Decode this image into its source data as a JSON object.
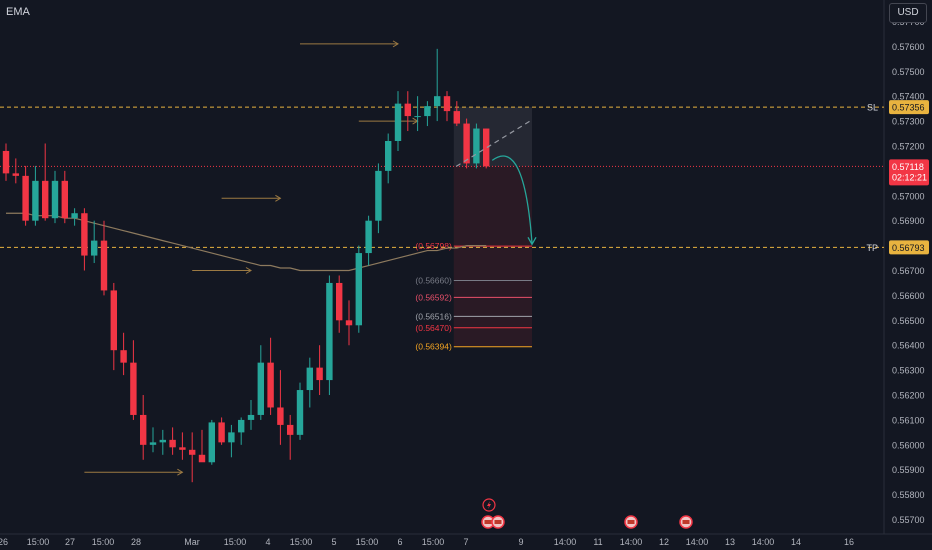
{
  "indicator_label": "EMA",
  "currency_label": "USD",
  "sl_label": "SL",
  "tp_label": "TP",
  "colors": {
    "background": "#131722",
    "bull": "#26a69a",
    "bear": "#f23645",
    "ema": "#8d7a5e",
    "level_line": "#e8b33f",
    "current_price": "#f23645",
    "grid_text": "#b2b5be"
  },
  "price_axis": {
    "min": 0.5565,
    "max": 0.5775,
    "ticks": [
      "0.57700",
      "0.57600",
      "0.57500",
      "0.57400",
      "0.57300",
      "0.57200",
      "0.57100",
      "0.57000",
      "0.56900",
      "0.56800",
      "0.56700",
      "0.56600",
      "0.56500",
      "0.56400",
      "0.56300",
      "0.56200",
      "0.56100",
      "0.56000",
      "0.55900",
      "0.55800",
      "0.55700"
    ],
    "current_price": "0.57118",
    "countdown": "02:12:21"
  },
  "time_axis_labels": [
    "26",
    "15:00",
    "27",
    "15:00",
    "28",
    "Mar",
    "15:00",
    "4",
    "15:00",
    "5",
    "15:00",
    "6",
    "15:00",
    "7",
    "9",
    "14:00",
    "11",
    "14:00",
    "12",
    "14:00",
    "13",
    "14:00",
    "14",
    "16"
  ],
  "chart_data": {
    "type": "candlestick",
    "ema_series_name": "EMA",
    "candles": [
      {
        "o": 0.5718,
        "h": 0.5721,
        "l": 0.5706,
        "c": 0.5709
      },
      {
        "o": 0.5709,
        "h": 0.5715,
        "l": 0.5705,
        "c": 0.5708
      },
      {
        "o": 0.5708,
        "h": 0.5712,
        "l": 0.5688,
        "c": 0.569
      },
      {
        "o": 0.569,
        "h": 0.5712,
        "l": 0.5688,
        "c": 0.5706
      },
      {
        "o": 0.5706,
        "h": 0.5721,
        "l": 0.569,
        "c": 0.5691
      },
      {
        "o": 0.5691,
        "h": 0.571,
        "l": 0.5689,
        "c": 0.5706
      },
      {
        "o": 0.5706,
        "h": 0.571,
        "l": 0.5689,
        "c": 0.5691
      },
      {
        "o": 0.5691,
        "h": 0.5695,
        "l": 0.5688,
        "c": 0.5693
      },
      {
        "o": 0.5693,
        "h": 0.5695,
        "l": 0.567,
        "c": 0.5676
      },
      {
        "o": 0.5676,
        "h": 0.569,
        "l": 0.5673,
        "c": 0.5682
      },
      {
        "o": 0.5682,
        "h": 0.569,
        "l": 0.566,
        "c": 0.5662
      },
      {
        "o": 0.5662,
        "h": 0.5665,
        "l": 0.563,
        "c": 0.5638
      },
      {
        "o": 0.5638,
        "h": 0.5645,
        "l": 0.5628,
        "c": 0.5633
      },
      {
        "o": 0.5633,
        "h": 0.5642,
        "l": 0.561,
        "c": 0.5612
      },
      {
        "o": 0.5612,
        "h": 0.562,
        "l": 0.5594,
        "c": 0.56
      },
      {
        "o": 0.56,
        "h": 0.5607,
        "l": 0.5597,
        "c": 0.5601
      },
      {
        "o": 0.5601,
        "h": 0.5606,
        "l": 0.5596,
        "c": 0.5602
      },
      {
        "o": 0.5602,
        "h": 0.5607,
        "l": 0.5596,
        "c": 0.5599
      },
      {
        "o": 0.5599,
        "h": 0.5605,
        "l": 0.5594,
        "c": 0.5598
      },
      {
        "o": 0.5598,
        "h": 0.5605,
        "l": 0.5585,
        "c": 0.5596
      },
      {
        "o": 0.5596,
        "h": 0.5606,
        "l": 0.5594,
        "c": 0.5593
      },
      {
        "o": 0.5593,
        "h": 0.561,
        "l": 0.5592,
        "c": 0.5609
      },
      {
        "o": 0.5609,
        "h": 0.5611,
        "l": 0.56,
        "c": 0.5601
      },
      {
        "o": 0.5601,
        "h": 0.5608,
        "l": 0.5595,
        "c": 0.5605
      },
      {
        "o": 0.5605,
        "h": 0.5611,
        "l": 0.56,
        "c": 0.561
      },
      {
        "o": 0.561,
        "h": 0.5618,
        "l": 0.5606,
        "c": 0.5612
      },
      {
        "o": 0.5612,
        "h": 0.564,
        "l": 0.561,
        "c": 0.5633
      },
      {
        "o": 0.5633,
        "h": 0.5643,
        "l": 0.5612,
        "c": 0.5615
      },
      {
        "o": 0.5615,
        "h": 0.563,
        "l": 0.56,
        "c": 0.5608
      },
      {
        "o": 0.5608,
        "h": 0.5612,
        "l": 0.5594,
        "c": 0.5604
      },
      {
        "o": 0.5604,
        "h": 0.5625,
        "l": 0.5602,
        "c": 0.5622
      },
      {
        "o": 0.5622,
        "h": 0.5635,
        "l": 0.5615,
        "c": 0.5631
      },
      {
        "o": 0.5631,
        "h": 0.564,
        "l": 0.562,
        "c": 0.5626
      },
      {
        "o": 0.5626,
        "h": 0.5668,
        "l": 0.562,
        "c": 0.5665
      },
      {
        "o": 0.5665,
        "h": 0.5668,
        "l": 0.5645,
        "c": 0.565
      },
      {
        "o": 0.565,
        "h": 0.5658,
        "l": 0.564,
        "c": 0.5648
      },
      {
        "o": 0.5648,
        "h": 0.568,
        "l": 0.5645,
        "c": 0.5677
      },
      {
        "o": 0.5677,
        "h": 0.5692,
        "l": 0.5672,
        "c": 0.569
      },
      {
        "o": 0.569,
        "h": 0.5713,
        "l": 0.5685,
        "c": 0.571
      },
      {
        "o": 0.571,
        "h": 0.5725,
        "l": 0.5705,
        "c": 0.5722
      },
      {
        "o": 0.5722,
        "h": 0.5742,
        "l": 0.5718,
        "c": 0.5737
      },
      {
        "o": 0.5737,
        "h": 0.5742,
        "l": 0.5726,
        "c": 0.5732
      },
      {
        "o": 0.5732,
        "h": 0.574,
        "l": 0.5726,
        "c": 0.5732
      },
      {
        "o": 0.5732,
        "h": 0.5738,
        "l": 0.5728,
        "c": 0.5736
      },
      {
        "o": 0.5736,
        "h": 0.5759,
        "l": 0.573,
        "c": 0.574
      },
      {
        "o": 0.574,
        "h": 0.5742,
        "l": 0.573,
        "c": 0.5734
      },
      {
        "o": 0.5734,
        "h": 0.5738,
        "l": 0.5728,
        "c": 0.5729
      },
      {
        "o": 0.5729,
        "h": 0.5731,
        "l": 0.5711,
        "c": 0.5713
      },
      {
        "o": 0.5713,
        "h": 0.5729,
        "l": 0.5711,
        "c": 0.5727
      },
      {
        "o": 0.5727,
        "h": 0.5727,
        "l": 0.5711,
        "c": 0.57118
      }
    ],
    "ema_values": [
      0.5693,
      0.5693,
      0.5693,
      0.5692,
      0.5692,
      0.5692,
      0.5691,
      0.5691,
      0.569,
      0.5689,
      0.5688,
      0.5687,
      0.5686,
      0.5685,
      0.5684,
      0.5683,
      0.5682,
      0.5681,
      0.568,
      0.5679,
      0.5678,
      0.5677,
      0.5676,
      0.5675,
      0.5674,
      0.5673,
      0.5672,
      0.5672,
      0.5671,
      0.5671,
      0.567,
      0.567,
      0.567,
      0.567,
      0.567,
      0.567,
      0.5671,
      0.5672,
      0.5673,
      0.5674,
      0.5675,
      0.5676,
      0.5677,
      0.5678,
      0.5678,
      0.5679,
      0.5679,
      0.568,
      0.568,
      0.568
    ],
    "levels": [
      {
        "name": "SL",
        "value": "0.57356",
        "color": "#e8b33f"
      },
      {
        "name": "TP",
        "value": "0.56793",
        "color": "#e8b33f"
      }
    ],
    "fib_levels": [
      {
        "label": "(0.56798)",
        "value": 0.56798,
        "color": "#f23645"
      },
      {
        "label": "(0.56660)",
        "value": 0.5666,
        "color": "#787b86"
      },
      {
        "label": "(0.56592)",
        "value": 0.56592,
        "color": "#e8506a"
      },
      {
        "label": "(0.56516)",
        "value": 0.56516,
        "color": "#a0a3ab"
      },
      {
        "label": "(0.56470)",
        "value": 0.5647,
        "color": "#f23645"
      },
      {
        "label": "(0.56394)",
        "value": 0.56394,
        "color": "#f5a623"
      }
    ],
    "horizontal_arrows": [
      {
        "price": 0.5761,
        "from_index": 30,
        "to_index": 40
      },
      {
        "price": 0.573,
        "from_index": 36,
        "to_index": 42
      },
      {
        "price": 0.5699,
        "from_index": 22,
        "to_index": 28
      },
      {
        "price": 0.567,
        "from_index": 19,
        "to_index": 25
      },
      {
        "price": 0.5589,
        "from_index": 8,
        "to_index": 18
      }
    ]
  }
}
